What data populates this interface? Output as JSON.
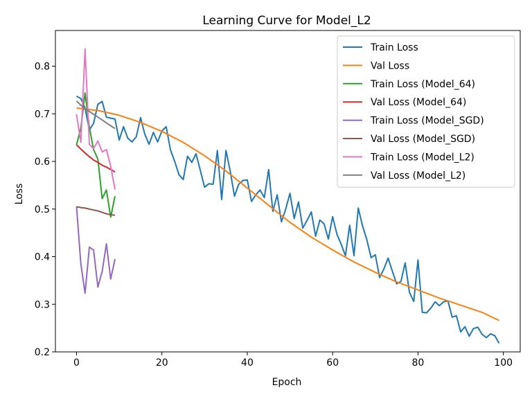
{
  "chart_data": {
    "type": "line",
    "title": "Learning Curve for Model_L2",
    "xlabel": "Epoch",
    "ylabel": "Loss",
    "xlim": [
      -4.95,
      103.95
    ],
    "ylim": [
      0.2,
      0.875
    ],
    "xticks": [
      0,
      20,
      40,
      60,
      80,
      100
    ],
    "yticks": [
      0.2,
      0.3,
      0.4,
      0.5,
      0.6,
      0.7,
      0.8
    ],
    "xtick_labels": [
      "0",
      "20",
      "40",
      "60",
      "80",
      "100"
    ],
    "ytick_labels": [
      "0.2",
      "0.3",
      "0.4",
      "0.5",
      "0.6",
      "0.7",
      "0.8"
    ],
    "grid": false,
    "legend_position": "top-right",
    "series": [
      {
        "name": "Train Loss",
        "color": "#1f77b4",
        "x": [
          0,
          1,
          2,
          3,
          4,
          5,
          6,
          7,
          8,
          9,
          10,
          11,
          12,
          13,
          14,
          15,
          16,
          17,
          18,
          19,
          20,
          21,
          22,
          23,
          24,
          25,
          26,
          27,
          28,
          29,
          30,
          31,
          32,
          33,
          34,
          35,
          36,
          37,
          38,
          39,
          40,
          41,
          42,
          43,
          44,
          45,
          46,
          47,
          48,
          49,
          50,
          51,
          52,
          53,
          54,
          55,
          56,
          57,
          58,
          59,
          60,
          61,
          62,
          63,
          64,
          65,
          66,
          67,
          68,
          69,
          70,
          71,
          72,
          73,
          74,
          75,
          76,
          77,
          78,
          79,
          80,
          81,
          82,
          83,
          84,
          85,
          86,
          87,
          88,
          89,
          90,
          91,
          92,
          93,
          94,
          95,
          96,
          97,
          98,
          99
        ],
        "y": [
          0.737,
          0.732,
          0.712,
          0.666,
          0.68,
          0.72,
          0.726,
          0.693,
          0.691,
          0.689,
          0.645,
          0.673,
          0.649,
          0.641,
          0.652,
          0.692,
          0.657,
          0.636,
          0.661,
          0.641,
          0.664,
          0.673,
          0.624,
          0.6,
          0.572,
          0.562,
          0.611,
          0.598,
          0.616,
          0.581,
          0.546,
          0.553,
          0.552,
          0.623,
          0.52,
          0.623,
          0.58,
          0.527,
          0.552,
          0.56,
          0.561,
          0.516,
          0.53,
          0.54,
          0.524,
          0.583,
          0.495,
          0.53,
          0.473,
          0.5,
          0.533,
          0.48,
          0.515,
          0.46,
          0.476,
          0.494,
          0.443,
          0.477,
          0.469,
          0.437,
          0.484,
          0.447,
          0.426,
          0.402,
          0.466,
          0.402,
          0.502,
          0.465,
          0.436,
          0.398,
          0.404,
          0.356,
          0.374,
          0.397,
          0.369,
          0.343,
          0.348,
          0.387,
          0.325,
          0.306,
          0.393,
          0.283,
          0.282,
          0.292,
          0.305,
          0.297,
          0.305,
          0.307,
          0.273,
          0.276,
          0.242,
          0.253,
          0.233,
          0.249,
          0.252,
          0.237,
          0.23,
          0.238,
          0.234,
          0.218
        ]
      },
      {
        "name": "Val Loss",
        "color": "#ff7f0e",
        "x": [
          0,
          5,
          10,
          15,
          20,
          25,
          30,
          35,
          40,
          45,
          50,
          55,
          60,
          65,
          70,
          75,
          80,
          85,
          90,
          95,
          99
        ],
        "y": [
          0.712,
          0.707,
          0.697,
          0.682,
          0.663,
          0.64,
          0.612,
          0.58,
          0.544,
          0.508,
          0.472,
          0.441,
          0.414,
          0.389,
          0.367,
          0.347,
          0.33,
          0.313,
          0.298,
          0.283,
          0.266
        ]
      },
      {
        "name": "Train Loss (Model_64)",
        "color": "#2ca02c",
        "x": [
          0,
          1,
          2,
          3,
          4,
          5,
          6,
          7,
          8,
          9
        ],
        "y": [
          0.635,
          0.67,
          0.744,
          0.672,
          0.625,
          0.605,
          0.522,
          0.54,
          0.483,
          0.527
        ]
      },
      {
        "name": "Val Loss (Model_64)",
        "color": "#d62728",
        "x": [
          0,
          1,
          2,
          3,
          4,
          5,
          6,
          7,
          8,
          9
        ],
        "y": [
          0.635,
          0.626,
          0.618,
          0.61,
          0.603,
          0.598,
          0.592,
          0.588,
          0.583,
          0.578
        ]
      },
      {
        "name": "Train Loss (Model_SGD)",
        "color": "#9467bd",
        "x": [
          0,
          1,
          2,
          3,
          4,
          5,
          6,
          7,
          8,
          9
        ],
        "y": [
          0.505,
          0.385,
          0.323,
          0.42,
          0.414,
          0.336,
          0.369,
          0.427,
          0.353,
          0.395
        ]
      },
      {
        "name": "Val Loss (Model_SGD)",
        "color": "#8c564b",
        "x": [
          0,
          1,
          2,
          3,
          4,
          5,
          6,
          7,
          8,
          9
        ],
        "y": [
          0.505,
          0.503,
          0.502,
          0.5,
          0.498,
          0.496,
          0.493,
          0.49,
          0.488,
          0.487
        ]
      },
      {
        "name": "Train Loss (Model_L2)",
        "color": "#e377c2",
        "x": [
          0,
          1,
          2,
          3,
          4,
          5,
          6,
          7,
          8,
          9
        ],
        "y": [
          0.699,
          0.64,
          0.836,
          0.636,
          0.627,
          0.643,
          0.62,
          0.625,
          0.59,
          0.541
        ]
      },
      {
        "name": "Val Loss (Model_L2)",
        "color": "#7f7f7f",
        "x": [
          0,
          1,
          2,
          3,
          4,
          5,
          6,
          7,
          8,
          9
        ],
        "y": [
          0.727,
          0.718,
          0.711,
          0.705,
          0.699,
          0.693,
          0.687,
          0.681,
          0.675,
          0.669
        ]
      }
    ]
  }
}
